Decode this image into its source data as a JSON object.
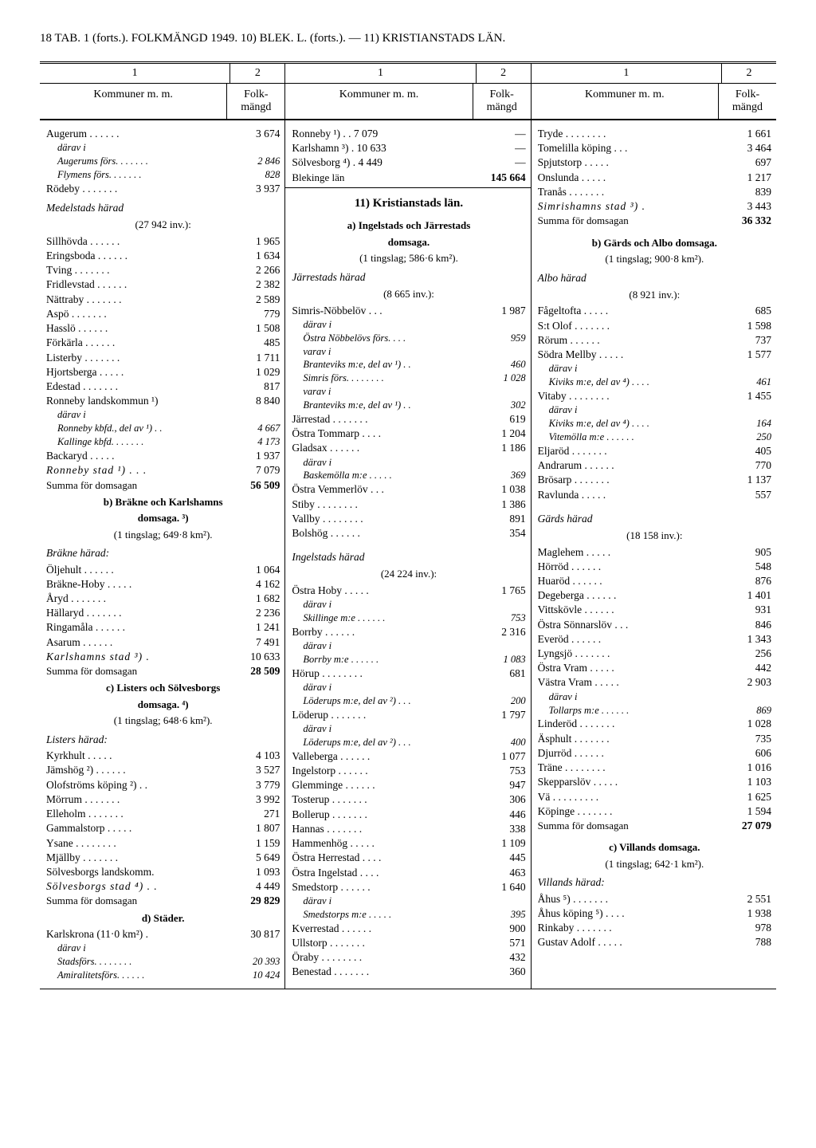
{
  "header": "18 TAB. 1 (forts.). FOLKMÄNGD 1949. 10) BLEK. L. (forts.). — 11) KRISTIANSTADS LÄN.",
  "colNums": [
    "1",
    "2"
  ],
  "colLabels": [
    "Kommuner m. m.",
    "Folk-mängd"
  ],
  "col1": [
    {
      "t": "row",
      "n": "Augerum . . . . . .",
      "v": "3 674",
      "sp": true
    },
    {
      "t": "irow",
      "n": "därav i",
      "v": ""
    },
    {
      "t": "irow",
      "n": "Augerums förs. . . . . . .",
      "v": "2 846"
    },
    {
      "t": "irow",
      "n": "Flymens förs. . . . . . .",
      "v": "828"
    },
    {
      "t": "row",
      "n": "Rödeby . . . . . . .",
      "v": "3 937"
    },
    {
      "t": "sec",
      "n": "Medelstads härad"
    },
    {
      "t": "sub",
      "n": "(27 942 inv.):"
    },
    {
      "t": "row",
      "n": "Sillhövda . . . . . .",
      "v": "1 965"
    },
    {
      "t": "row",
      "n": "Eringsboda . . . . . .",
      "v": "1 634"
    },
    {
      "t": "row",
      "n": "Tving . . . . . . .",
      "v": "2 266"
    },
    {
      "t": "row",
      "n": "Fridlevstad . . . . . .",
      "v": "2 382"
    },
    {
      "t": "row",
      "n": "Nättraby . . . . . . .",
      "v": "2 589"
    },
    {
      "t": "row",
      "n": "Aspö . . . . . . .",
      "v": "779"
    },
    {
      "t": "row",
      "n": "Hasslö . . . . . .",
      "v": "1 508"
    },
    {
      "t": "row",
      "n": "Förkärla . . . . . .",
      "v": "485"
    },
    {
      "t": "row",
      "n": "Listerby . . . . . . .",
      "v": "1 711"
    },
    {
      "t": "row",
      "n": "Hjortsberga . . . . .",
      "v": "1 029"
    },
    {
      "t": "row",
      "n": "Edestad . . . . . . .",
      "v": "817"
    },
    {
      "t": "row",
      "n": "Ronneby landskommun ¹)",
      "v": "8 840"
    },
    {
      "t": "irow",
      "n": "därav i",
      "v": ""
    },
    {
      "t": "irow",
      "n": "Ronneby kbfd., del av ¹) . .",
      "v": "4 667"
    },
    {
      "t": "irow",
      "n": "Kallinge kbfd. . . . . . .",
      "v": "4 173"
    },
    {
      "t": "row",
      "n": "Backaryd . . . . .",
      "v": "1 937"
    },
    {
      "t": "rowsp",
      "n": "Ronneby stad ¹) . . .",
      "v": "7 079"
    },
    {
      "t": "rowb",
      "n": "Summa för domsagan",
      "v": "56 509"
    },
    {
      "t": "center",
      "n": "b) Bräkne och Karlshamns"
    },
    {
      "t": "center",
      "n": "domsaga. ³)"
    },
    {
      "t": "sub",
      "n": "(1 tingslag; 649·8 km²)."
    },
    {
      "t": "sec",
      "n": "Bräkne härad:"
    },
    {
      "t": "row",
      "n": "Öljehult . . . . . .",
      "v": "1 064"
    },
    {
      "t": "row",
      "n": "Bräkne-Hoby . . . . .",
      "v": "4 162"
    },
    {
      "t": "row",
      "n": "Åryd . . . . . . .",
      "v": "1 682"
    },
    {
      "t": "row",
      "n": "Hällaryd . . . . . . .",
      "v": "2 236"
    },
    {
      "t": "row",
      "n": "Ringamåla . . . . . .",
      "v": "1 241"
    },
    {
      "t": "row",
      "n": "Asarum . . . . . .",
      "v": "7 491"
    },
    {
      "t": "rowsp",
      "n": "Karlshamns stad ³) .",
      "v": "10 633"
    },
    {
      "t": "rowb",
      "n": "Summa för domsagan",
      "v": "28 509"
    },
    {
      "t": "center",
      "n": "c) Listers och Sölvesborgs"
    },
    {
      "t": "center",
      "n": "domsaga. ⁴)"
    },
    {
      "t": "sub",
      "n": "(1 tingslag; 648·6 km²)."
    },
    {
      "t": "sec",
      "n": "Listers härad:"
    },
    {
      "t": "row",
      "n": "Kyrkhult . . . . .",
      "v": "4 103"
    },
    {
      "t": "row",
      "n": "Jämshög ²) . . . . . .",
      "v": "3 527"
    },
    {
      "t": "row",
      "n": "Olofströms köping ²) . .",
      "v": "3 779"
    },
    {
      "t": "row",
      "n": "Mörrum . . . . . . .",
      "v": "3 992"
    },
    {
      "t": "row",
      "n": "Elleholm . . . . . . .",
      "v": "271"
    },
    {
      "t": "row",
      "n": "Gammalstorp . . . . .",
      "v": "1 807"
    },
    {
      "t": "row",
      "n": "Ysane . . . . . . . .",
      "v": "1 159"
    },
    {
      "t": "row",
      "n": "Mjällby . . . . . . .",
      "v": "5 649"
    },
    {
      "t": "row",
      "n": "Sölvesborgs landskomm.",
      "v": "1 093"
    },
    {
      "t": "rowsp",
      "n": "Sölvesborgs stad ⁴) . .",
      "v": "4 449"
    },
    {
      "t": "rowb",
      "n": "Summa för domsagan",
      "v": "29 829"
    },
    {
      "t": "center",
      "n": "d) Städer."
    },
    {
      "t": "row",
      "n": "Karlskrona (11·0 km²) .",
      "v": "30 817"
    },
    {
      "t": "irow",
      "n": "därav i",
      "v": ""
    },
    {
      "t": "irow",
      "n": "Stadsförs. . . . . . . .",
      "v": "20 393"
    },
    {
      "t": "irow",
      "n": "Amiralitetsförs. . . . . .",
      "v": "10 424"
    }
  ],
  "col2": [
    {
      "t": "row",
      "n": "Ronneby ¹) . .   7 079",
      "v": "—"
    },
    {
      "t": "row",
      "n": "Karlshamn ³) .  10 633",
      "v": "—"
    },
    {
      "t": "row",
      "n": "Sölvesborg ⁴) .   4 449",
      "v": "—"
    },
    {
      "t": "rowb",
      "n": "Blekinge län",
      "v": "145 664"
    },
    {
      "t": "hline"
    },
    {
      "t": "spacer"
    },
    {
      "t": "centerbig",
      "n": "11) Kristianstads län."
    },
    {
      "t": "spacer"
    },
    {
      "t": "center",
      "n": "a) Ingelstads och Järrestads"
    },
    {
      "t": "center",
      "n": "domsaga."
    },
    {
      "t": "sub",
      "n": "(1 tingslag; 586·6 km²)."
    },
    {
      "t": "sec",
      "n": "Järrestads härad"
    },
    {
      "t": "sub",
      "n": "(8 665 inv.):"
    },
    {
      "t": "row",
      "n": "Simris-Nöbbelöv . . .",
      "v": "1 987"
    },
    {
      "t": "irow",
      "n": "därav i",
      "v": ""
    },
    {
      "t": "irow",
      "n": "Östra Nöbbelövs förs. . . .",
      "v": "959"
    },
    {
      "t": "irow",
      "n": "varav i",
      "v": ""
    },
    {
      "t": "irow",
      "n": "Branteviks m:e, del av ¹) . .",
      "v": "460"
    },
    {
      "t": "irow",
      "n": "Simris förs. . . . . . . .",
      "v": "1 028"
    },
    {
      "t": "irow",
      "n": "varav i",
      "v": ""
    },
    {
      "t": "irow",
      "n": "Branteviks m:e, del av ¹) . .",
      "v": "302"
    },
    {
      "t": "row",
      "n": "Järrestad . . . . . . .",
      "v": "619"
    },
    {
      "t": "row",
      "n": "Östra Tommarp . . . .",
      "v": "1 204"
    },
    {
      "t": "row",
      "n": "Gladsax . . . . . .",
      "v": "1 186"
    },
    {
      "t": "irow",
      "n": "därav i",
      "v": ""
    },
    {
      "t": "irow",
      "n": "Baskemölla m:e . . . . .",
      "v": "369"
    },
    {
      "t": "row",
      "n": "Östra Vemmerlöv . . .",
      "v": "1 038"
    },
    {
      "t": "row",
      "n": "Stiby . . . . . . . .",
      "v": "1 386"
    },
    {
      "t": "row",
      "n": "Vallby . . . . . . . .",
      "v": "891"
    },
    {
      "t": "row",
      "n": "Bolshög . . . . . .",
      "v": "354"
    },
    {
      "t": "spacer"
    },
    {
      "t": "sec",
      "n": "Ingelstads härad"
    },
    {
      "t": "sub",
      "n": "(24 224 inv.):"
    },
    {
      "t": "row",
      "n": "Östra Hoby . . . . .",
      "v": "1 765"
    },
    {
      "t": "irow",
      "n": "därav i",
      "v": ""
    },
    {
      "t": "irow",
      "n": "Skillinge m:e . . . . . .",
      "v": "753"
    },
    {
      "t": "row",
      "n": "Borrby . . . . . .",
      "v": "2 316"
    },
    {
      "t": "irow",
      "n": "därav i",
      "v": ""
    },
    {
      "t": "irow",
      "n": "Borrby m:e . . . . . .",
      "v": "1 083"
    },
    {
      "t": "row",
      "n": "Hörup . . . . . . . .",
      "v": "681"
    },
    {
      "t": "irow",
      "n": "därav i",
      "v": ""
    },
    {
      "t": "irow",
      "n": "Löderups m:e, del av ²) . . .",
      "v": "200"
    },
    {
      "t": "row",
      "n": "Löderup . . . . . . .",
      "v": "1 797"
    },
    {
      "t": "irow",
      "n": "därav i",
      "v": ""
    },
    {
      "t": "irow",
      "n": "Löderups m:e, del av ²) . . .",
      "v": "400"
    },
    {
      "t": "row",
      "n": "Valleberga . . . . . .",
      "v": "1 077"
    },
    {
      "t": "row",
      "n": "Ingelstorp . . . . . .",
      "v": "753"
    },
    {
      "t": "row",
      "n": "Glemminge . . . . . .",
      "v": "947"
    },
    {
      "t": "row",
      "n": "Tosterup . . . . . . .",
      "v": "306"
    },
    {
      "t": "row",
      "n": "Bollerup . . . . . . .",
      "v": "446"
    },
    {
      "t": "row",
      "n": "Hannas . . . . . . .",
      "v": "338"
    },
    {
      "t": "row",
      "n": "Hammenhög . . . . .",
      "v": "1 109"
    },
    {
      "t": "row",
      "n": "Östra Herrestad . . . .",
      "v": "445"
    },
    {
      "t": "row",
      "n": "Östra Ingelstad . . . .",
      "v": "463"
    },
    {
      "t": "row",
      "n": "Smedstorp . . . . . .",
      "v": "1 640"
    },
    {
      "t": "irow",
      "n": "därav i",
      "v": ""
    },
    {
      "t": "irow",
      "n": "Smedstorps m:e . . . . .",
      "v": "395"
    },
    {
      "t": "row",
      "n": "Kverrestad . . . . . .",
      "v": "900"
    },
    {
      "t": "row",
      "n": "Ullstorp . . . . . . .",
      "v": "571"
    },
    {
      "t": "row",
      "n": "Öraby . . . . . . . .",
      "v": "432"
    },
    {
      "t": "row",
      "n": "Benestad . . . . . . .",
      "v": "360"
    }
  ],
  "col3": [
    {
      "t": "row",
      "n": "Tryde . . . . . . . .",
      "v": "1 661"
    },
    {
      "t": "row",
      "n": "Tomelilla köping . . .",
      "v": "3 464"
    },
    {
      "t": "row",
      "n": "Spjutstorp . . . . .",
      "v": "697"
    },
    {
      "t": "row",
      "n": "Onslunda . . . . .",
      "v": "1 217"
    },
    {
      "t": "row",
      "n": "Tranås . . . . . . .",
      "v": "839"
    },
    {
      "t": "rowsp",
      "n": "Simrishamns stad ³) .",
      "v": "3 443"
    },
    {
      "t": "rowb",
      "n": "Summa för domsagan",
      "v": "36 332"
    },
    {
      "t": "spacer"
    },
    {
      "t": "center",
      "n": "b) Gärds och Albo domsaga."
    },
    {
      "t": "sub",
      "n": "(1 tingslag; 900·8 km²)."
    },
    {
      "t": "sec",
      "n": "Albo härad"
    },
    {
      "t": "sub",
      "n": "(8 921 inv.):"
    },
    {
      "t": "row",
      "n": "Fågeltofta . . . . .",
      "v": "685"
    },
    {
      "t": "row",
      "n": "S:t Olof . . . . . . .",
      "v": "1 598"
    },
    {
      "t": "row",
      "n": "Rörum . . . . . .",
      "v": "737"
    },
    {
      "t": "row",
      "n": "Södra Mellby . . . . .",
      "v": "1 577"
    },
    {
      "t": "irow",
      "n": "därav i",
      "v": ""
    },
    {
      "t": "irow",
      "n": "Kiviks m:e, del av ⁴) . . . .",
      "v": "461"
    },
    {
      "t": "row",
      "n": "Vitaby . . . . . . . .",
      "v": "1 455"
    },
    {
      "t": "irow",
      "n": "därav i",
      "v": ""
    },
    {
      "t": "irow",
      "n": "Kiviks m:e, del av ⁴) . . . .",
      "v": "164"
    },
    {
      "t": "irow",
      "n": "Vitemölla m:e . . . . . .",
      "v": "250"
    },
    {
      "t": "row",
      "n": "Eljaröd . . . . . . .",
      "v": "405"
    },
    {
      "t": "row",
      "n": "Andrarum . . . . . .",
      "v": "770"
    },
    {
      "t": "row",
      "n": "Brösarp . . . . . . .",
      "v": "1 137"
    },
    {
      "t": "row",
      "n": "Ravlunda . . . . .",
      "v": "557"
    },
    {
      "t": "spacer"
    },
    {
      "t": "sec",
      "n": "Gärds härad"
    },
    {
      "t": "sub",
      "n": "(18 158 inv.):"
    },
    {
      "t": "row",
      "n": "Maglehem . . . . .",
      "v": "905"
    },
    {
      "t": "row",
      "n": "Hörröd . . . . . .",
      "v": "548"
    },
    {
      "t": "row",
      "n": "Huaröd . . . . . .",
      "v": "876"
    },
    {
      "t": "row",
      "n": "Degeberga . . . . . .",
      "v": "1 401"
    },
    {
      "t": "row",
      "n": "Vittskövle . . . . . .",
      "v": "931"
    },
    {
      "t": "row",
      "n": "Östra Sönnarslöv . . .",
      "v": "846"
    },
    {
      "t": "row",
      "n": "Everöd . . . . . .",
      "v": "1 343"
    },
    {
      "t": "row",
      "n": "Lyngsjö . . . . . . .",
      "v": "256"
    },
    {
      "t": "row",
      "n": "Östra Vram . . . . .",
      "v": "442"
    },
    {
      "t": "row",
      "n": "Västra Vram . . . . .",
      "v": "2 903"
    },
    {
      "t": "irow",
      "n": "därav i",
      "v": ""
    },
    {
      "t": "irow",
      "n": "Tollarps m:e . . . . . .",
      "v": "869"
    },
    {
      "t": "row",
      "n": "Linderöd . . . . . . .",
      "v": "1 028"
    },
    {
      "t": "row",
      "n": "Äsphult . . . . . . .",
      "v": "735"
    },
    {
      "t": "row",
      "n": "Djurröd . . . . . .",
      "v": "606"
    },
    {
      "t": "row",
      "n": "Träne . . . . . . . .",
      "v": "1 016"
    },
    {
      "t": "row",
      "n": "Skepparslöv . . . . .",
      "v": "1 103"
    },
    {
      "t": "row",
      "n": "Vä . . . . . . . . .",
      "v": "1 625"
    },
    {
      "t": "row",
      "n": "Köpinge . . . . . . .",
      "v": "1 594"
    },
    {
      "t": "rowb",
      "n": "Summa för domsagan",
      "v": "27 079"
    },
    {
      "t": "spacer"
    },
    {
      "t": "center",
      "n": "c) Villands domsaga."
    },
    {
      "t": "sub",
      "n": "(1 tingslag; 642·1 km²)."
    },
    {
      "t": "sec",
      "n": "Villands härad:"
    },
    {
      "t": "row",
      "n": "Åhus ⁵) . . . . . . .",
      "v": "2 551"
    },
    {
      "t": "row",
      "n": "Åhus köping ⁵) . . . .",
      "v": "1 938"
    },
    {
      "t": "row",
      "n": "Rinkaby . . . . . . .",
      "v": "978"
    },
    {
      "t": "row",
      "n": "Gustav Adolf . . . . .",
      "v": "788"
    }
  ]
}
